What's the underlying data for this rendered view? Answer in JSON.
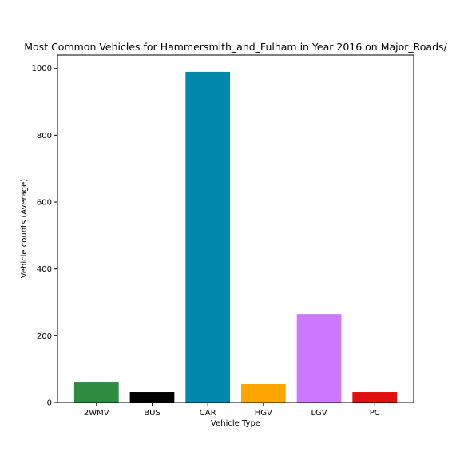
{
  "chart_data": {
    "type": "bar",
    "title": "Most Common Vehicles for Hammersmith_and_Fulham in Year 2016 on Major_Roads/",
    "xlabel": "Vehicle Type",
    "ylabel": "Vehicle counts (Average)",
    "categories": [
      "2WMV",
      "BUS",
      "CAR",
      "HGV",
      "LGV",
      "PC"
    ],
    "values": [
      62,
      31,
      990,
      55,
      265,
      31
    ],
    "colors": [
      "#2e8b40",
      "#000000",
      "#0088aa",
      "#ffa500",
      "#cc77ff",
      "#e01010"
    ],
    "ylim": [
      0,
      1040
    ],
    "yticks": [
      0,
      200,
      400,
      600,
      800,
      1000
    ],
    "grid": false,
    "legend": "none"
  }
}
